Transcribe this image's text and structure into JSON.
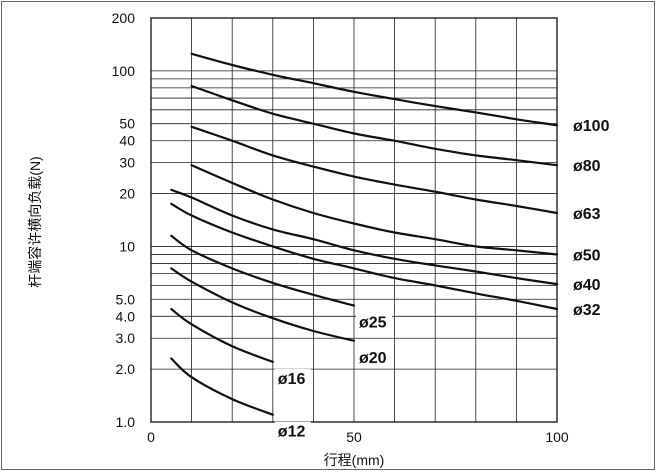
{
  "chart_data": {
    "type": "line",
    "title": "",
    "xlabel": "行程(mm)",
    "ylabel": "杆端容许横向负载(N)",
    "xlim": [
      0,
      100
    ],
    "ylim": [
      1.0,
      200
    ],
    "yscale": "log",
    "grid": true,
    "x_ticks": [
      0,
      50,
      100
    ],
    "x_tick_labels": [
      "0",
      "50",
      "100"
    ],
    "y_ticks": [
      1,
      2,
      3,
      4,
      5,
      10,
      20,
      30,
      40,
      50,
      100,
      200
    ],
    "y_tick_labels": [
      "1.0",
      "2.0",
      "3.0",
      "4.0",
      "5.0",
      "10",
      "20",
      "30",
      "40",
      "50",
      "100",
      "200"
    ],
    "series": [
      {
        "name": "ø100",
        "x": [
          10,
          20,
          30,
          40,
          50,
          60,
          70,
          80,
          90,
          100
        ],
        "y": [
          125,
          108,
          95,
          85,
          76,
          69,
          63,
          58,
          53,
          49
        ]
      },
      {
        "name": "ø80",
        "x": [
          10,
          20,
          30,
          40,
          50,
          60,
          70,
          80,
          90,
          100
        ],
        "y": [
          82,
          68,
          57,
          50,
          44,
          40,
          36,
          33,
          31,
          29
        ]
      },
      {
        "name": "ø63",
        "x": [
          10,
          20,
          30,
          40,
          50,
          60,
          70,
          80,
          90,
          100
        ],
        "y": [
          48,
          40,
          33,
          28.5,
          25,
          22.5,
          20.5,
          18.5,
          17,
          15.5
        ]
      },
      {
        "name": "ø50",
        "x": [
          10,
          20,
          30,
          40,
          50,
          60,
          70,
          80,
          90,
          100
        ],
        "y": [
          29,
          23,
          18.5,
          15.5,
          13.5,
          12,
          11,
          10,
          9.5,
          9
        ]
      },
      {
        "name": "ø40",
        "x": [
          5,
          10,
          20,
          30,
          40,
          50,
          60,
          70,
          80,
          90,
          100
        ],
        "y": [
          21,
          19,
          15,
          12.5,
          11,
          9.5,
          8.5,
          7.8,
          7.2,
          6.6,
          6.1
        ]
      },
      {
        "name": "ø32",
        "x": [
          5,
          10,
          20,
          30,
          40,
          50,
          60,
          70,
          80,
          90,
          100
        ],
        "y": [
          17.5,
          15,
          12,
          10,
          8.5,
          7.5,
          6.6,
          6,
          5.4,
          4.9,
          4.4
        ]
      },
      {
        "name": "ø25",
        "x": [
          5,
          10,
          20,
          30,
          40,
          50
        ],
        "y": [
          11.5,
          9.5,
          7.5,
          6.2,
          5.3,
          4.6
        ]
      },
      {
        "name": "ø20",
        "x": [
          5,
          10,
          20,
          30,
          40,
          50
        ],
        "y": [
          7.5,
          6.3,
          4.8,
          3.9,
          3.3,
          2.9
        ]
      },
      {
        "name": "ø16",
        "x": [
          5,
          10,
          20,
          30
        ],
        "y": [
          4.4,
          3.6,
          2.7,
          2.2
        ]
      },
      {
        "name": "ø12",
        "x": [
          5,
          10,
          20,
          30
        ],
        "y": [
          2.3,
          1.8,
          1.35,
          1.1
        ]
      }
    ]
  }
}
